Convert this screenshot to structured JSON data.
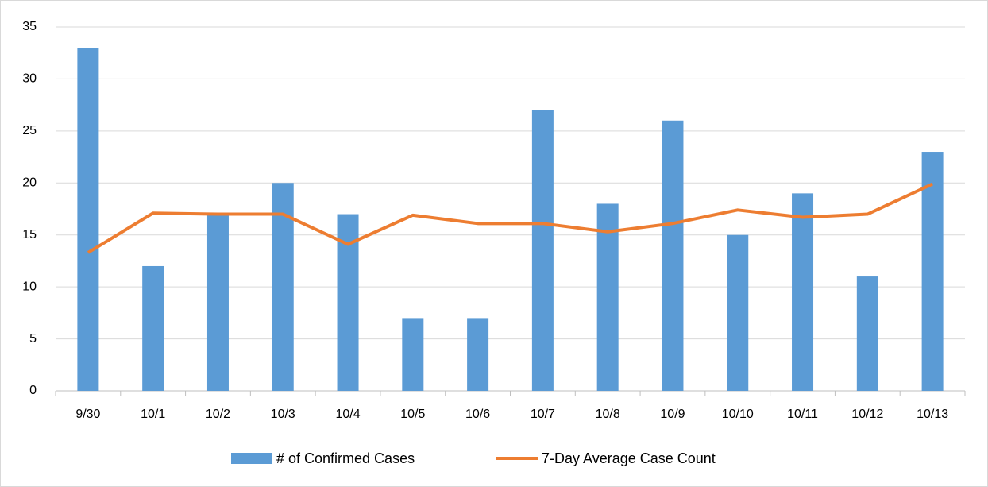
{
  "chart_data": {
    "type": "bar",
    "categories": [
      "9/30",
      "10/1",
      "10/2",
      "10/3",
      "10/4",
      "10/5",
      "10/6",
      "10/7",
      "10/8",
      "10/9",
      "10/10",
      "10/11",
      "10/12",
      "10/13"
    ],
    "series": [
      {
        "name": "# of Confirmed Cases",
        "type": "bar",
        "color": "#5b9bd5",
        "values": [
          33,
          12,
          17,
          20,
          17,
          7,
          7,
          27,
          18,
          26,
          15,
          19,
          11,
          23
        ]
      },
      {
        "name": "7-Day Average Case Count",
        "type": "line",
        "color": "#ed7d31",
        "values": [
          13.3,
          17.1,
          17.0,
          17.0,
          14.1,
          16.9,
          16.1,
          16.1,
          15.3,
          16.1,
          17.4,
          16.7,
          17.0,
          19.9
        ]
      }
    ],
    "ylim": [
      0,
      35
    ],
    "yticks": [
      0,
      5,
      10,
      15,
      20,
      25,
      30,
      35
    ],
    "grid": true,
    "legend": "bottom"
  }
}
